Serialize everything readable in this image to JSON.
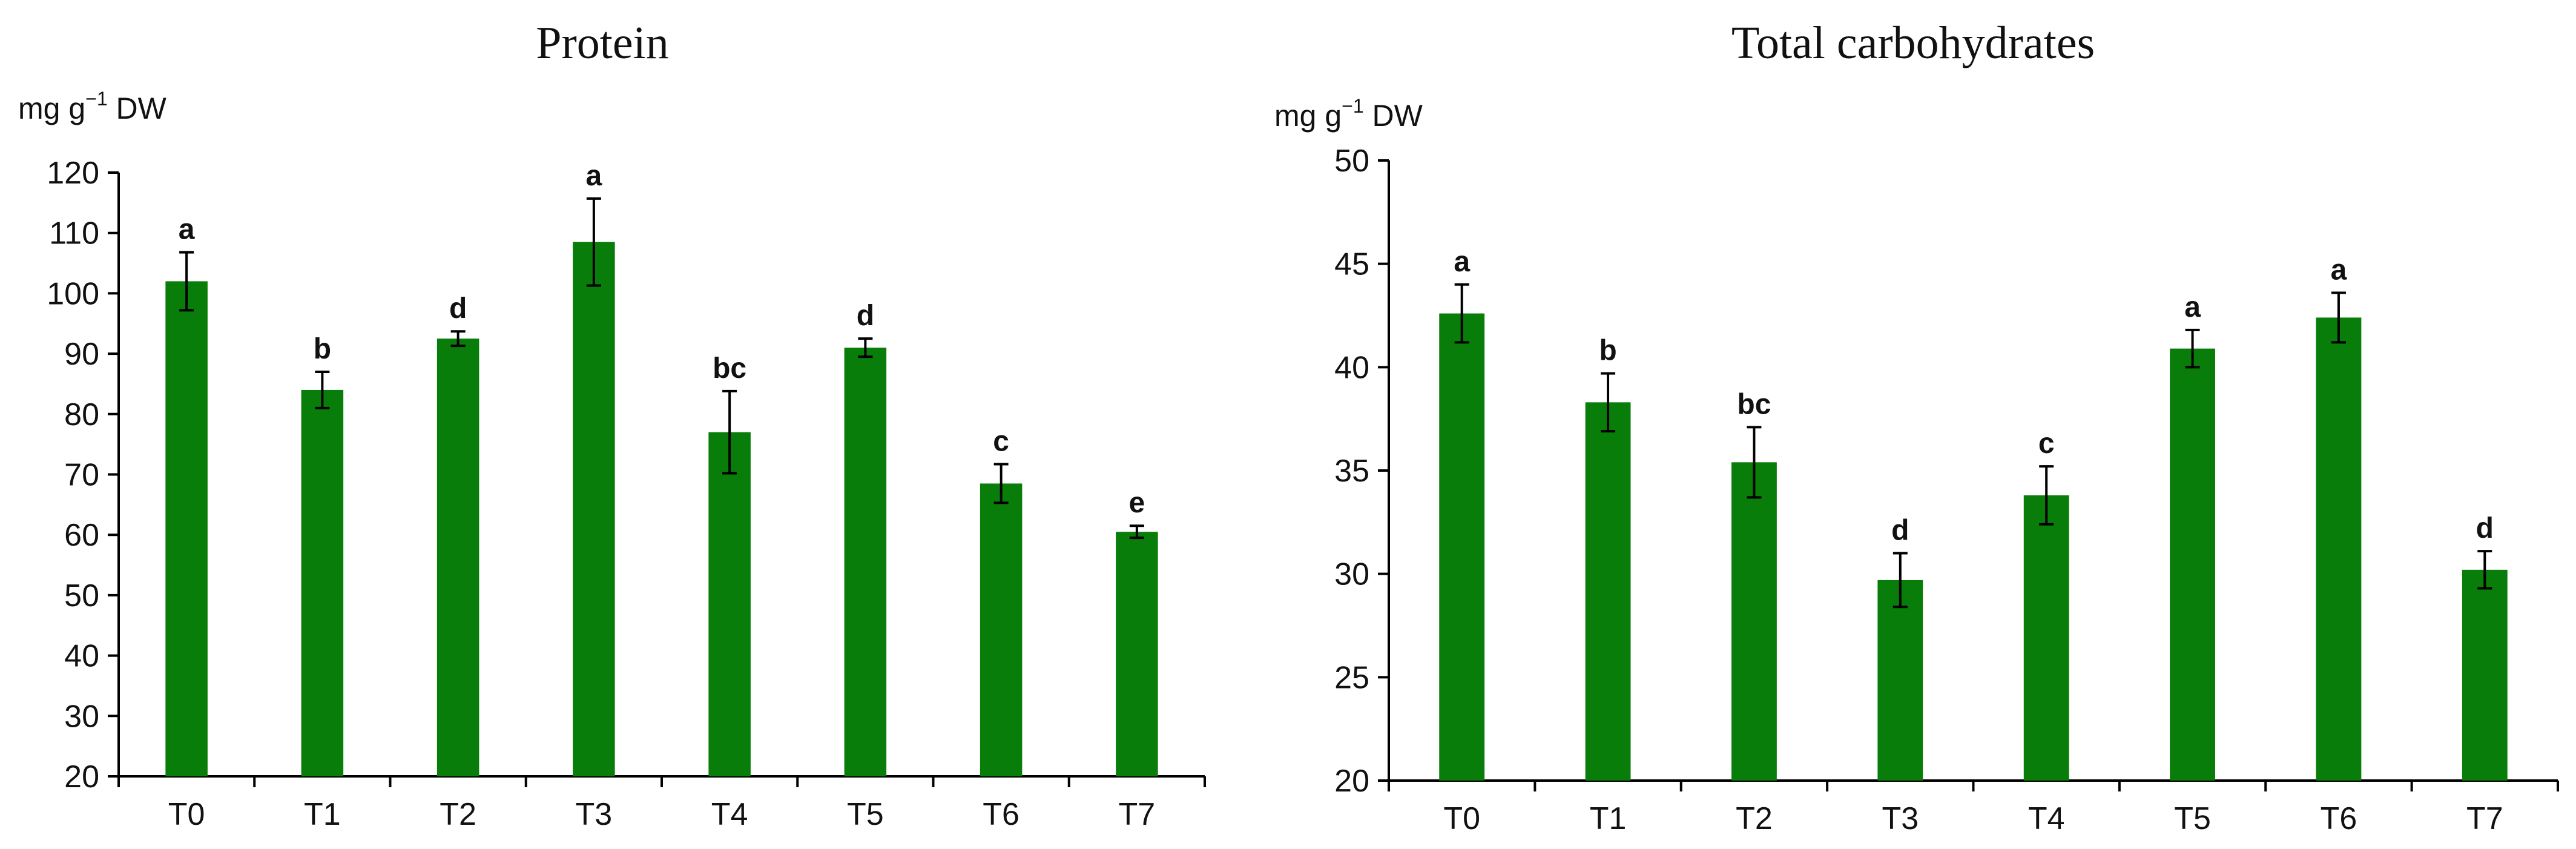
{
  "chart_data": [
    {
      "type": "bar",
      "title": "Protein",
      "unit": "mg g",
      "unit_sup": "−1",
      "unit_suffix": " DW",
      "xlabel": "",
      "ylabel": "mg g−1 DW",
      "categories": [
        "T0",
        "T1",
        "T2",
        "T3",
        "T4",
        "T5",
        "T6",
        "T7"
      ],
      "values": [
        102,
        84,
        92.5,
        108.5,
        77,
        91,
        68.5,
        60.5
      ],
      "errors": [
        4.8,
        3,
        1.2,
        7.2,
        6.8,
        1.5,
        3.2,
        1
      ],
      "labels": [
        "a",
        "b",
        "d",
        "a",
        "bc",
        "d",
        "c",
        "e"
      ],
      "ylim": [
        20,
        120
      ],
      "yticks": [
        20,
        30,
        40,
        50,
        60,
        70,
        80,
        90,
        100,
        110,
        120
      ],
      "color": "#097d09"
    },
    {
      "type": "bar",
      "title": "Total carbohydrates",
      "unit": "mg g",
      "unit_sup": "−1",
      "unit_suffix": " DW",
      "xlabel": "",
      "ylabel": "mg g−1 DW",
      "categories": [
        "T0",
        "T1",
        "T2",
        "T3",
        "T4",
        "T5",
        "T6",
        "T7"
      ],
      "values": [
        42.6,
        38.3,
        35.4,
        29.7,
        33.8,
        40.9,
        42.4,
        30.2
      ],
      "errors": [
        1.4,
        1.4,
        1.7,
        1.3,
        1.4,
        0.9,
        1.2,
        0.9
      ],
      "labels": [
        "a",
        "b",
        "bc",
        "d",
        "c",
        "a",
        "a",
        "d"
      ],
      "ylim": [
        20,
        50
      ],
      "yticks": [
        20,
        25,
        30,
        35,
        40,
        45,
        50
      ],
      "color": "#097d09"
    }
  ]
}
